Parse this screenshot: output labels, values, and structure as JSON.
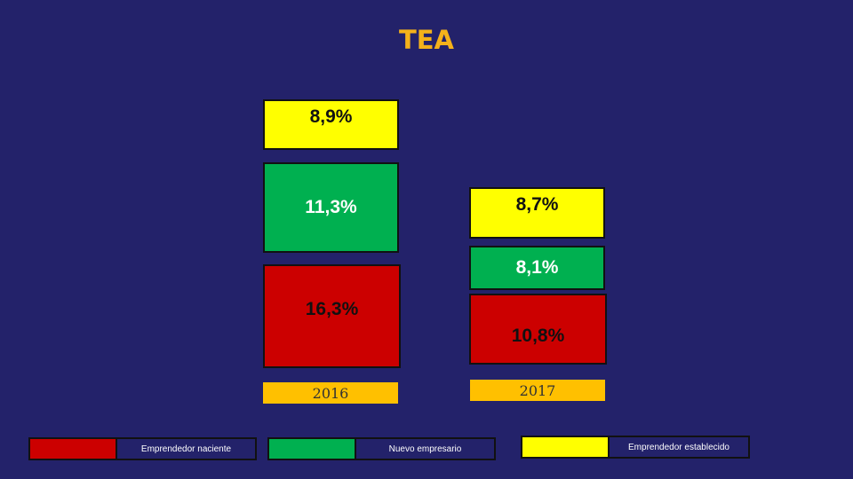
{
  "title": "TEA",
  "colors": {
    "background": "#23226a",
    "naciente": "#cc0000",
    "nuevo": "#00b050",
    "establecido": "#ffff00",
    "year_box": "#ffc000",
    "title": "#f5b21a"
  },
  "chart_data": {
    "type": "bar",
    "stacked": true,
    "title": "TEA",
    "categories": [
      "2016",
      "2017"
    ],
    "series": [
      {
        "name": "Emprendedor naciente",
        "values": [
          16.3,
          10.8
        ],
        "labels": [
          "16,3%",
          "10,8%"
        ],
        "color": "#cc0000"
      },
      {
        "name": "Nuevo empresario",
        "values": [
          11.3,
          8.1
        ],
        "labels": [
          "11,3%",
          "8,1%"
        ],
        "color": "#00b050"
      },
      {
        "name": "Emprendedor establecido",
        "values": [
          8.9,
          8.7
        ],
        "labels": [
          "8,9%",
          "8,7%"
        ],
        "color": "#ffff00"
      }
    ],
    "legend": "bottom"
  }
}
